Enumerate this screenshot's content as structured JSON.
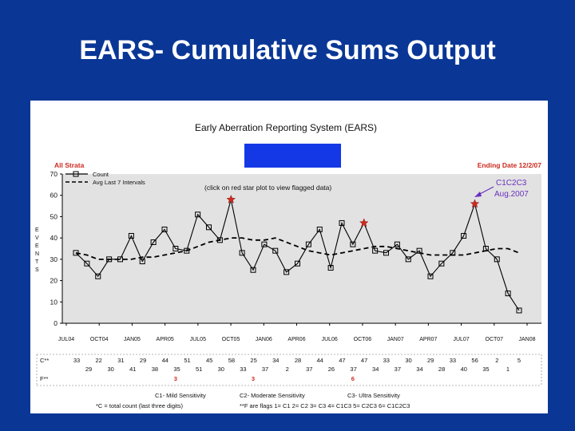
{
  "slide": {
    "title": "EARS- Cumulative Sums Output"
  },
  "report": {
    "system_title": "Early Aberration Reporting System (EARS)",
    "highlight_color": "#1438e6",
    "strata": "All Strata",
    "ending_date": "Ending Date 12/2/07",
    "legend_count": "Count",
    "legend_avg": "Avg Last 7 Intervals",
    "click_note": "(click on red star plot to view flagged data)",
    "y_axis_letters": [
      "E",
      "V",
      "E",
      "N",
      "T",
      "S"
    ],
    "annotation": {
      "line1": "C1C2C3",
      "line2": "Aug.2007",
      "color": "#6a2fbd"
    },
    "table": {
      "row_c_label": "C**",
      "row_f_label": "F**",
      "c_upper": [
        "33",
        "22",
        "31",
        "29",
        "44",
        "51",
        "45",
        "58",
        "25",
        "34",
        "28",
        "44",
        "47",
        "47",
        "33",
        "30",
        "29",
        "33",
        "56",
        "2",
        "5"
      ],
      "c_lower": [
        "29",
        "30",
        "41",
        "38",
        "35",
        "51",
        "30",
        "33",
        "37",
        "2",
        "37",
        "26",
        "37",
        "34",
        "37",
        "34",
        "28",
        "40",
        "35",
        "1"
      ],
      "flags": [
        {
          "index": 9,
          "value": "3"
        },
        {
          "index": 16,
          "value": "3"
        },
        {
          "index": 25,
          "value": "6"
        }
      ],
      "flag_color": "#cc2a1e"
    },
    "footer": {
      "sens_c1": "C1- Mild Sensitivity",
      "sens_c2": "C2- Moderate Sensitivity",
      "sens_c3": "C3- Ultra Sensitivity",
      "note_c": "*C = total count (last three digits)",
      "note_f": "**F are flags 1= C1 2= C2 3= C3 4= C1C3 5= C2C3 6= C1C2C3"
    }
  },
  "chart_data": {
    "type": "line",
    "title": "Early Aberration Reporting System (EARS)",
    "xlabel": "",
    "ylabel": "EVENTS",
    "ylim": [
      0,
      70
    ],
    "yticks": [
      0,
      10,
      20,
      30,
      40,
      50,
      60,
      70
    ],
    "grid": false,
    "legend_position": "top-left",
    "x_tick_labels": [
      "JUL04",
      "OCT04",
      "JAN05",
      "APR05",
      "JUL05",
      "OCT05",
      "JAN06",
      "APR06",
      "JUL06",
      "OCT06",
      "JAN07",
      "APR07",
      "JUL07",
      "OCT07",
      "JAN08"
    ],
    "series": [
      {
        "name": "Count",
        "style": "solid-square-markers",
        "color": "#000000",
        "values": [
          33,
          28,
          22,
          30,
          30,
          41,
          29,
          38,
          44,
          35,
          34,
          51,
          45,
          39,
          58,
          33,
          25,
          37,
          34,
          24,
          28,
          37,
          44,
          26,
          47,
          37,
          47,
          34,
          33,
          37,
          30,
          34,
          22,
          28,
          33,
          41,
          56,
          35,
          30,
          14,
          6
        ]
      },
      {
        "name": "Avg Last 7 Intervals",
        "style": "dashed",
        "color": "#000000",
        "values": [
          33,
          32,
          30,
          30,
          30,
          30,
          31,
          31,
          32,
          33,
          34,
          36,
          38,
          39,
          40,
          40,
          39,
          39,
          40,
          38,
          36,
          34,
          33,
          32,
          33,
          34,
          35,
          36,
          36,
          35,
          34,
          33,
          32,
          32,
          32,
          32,
          33,
          34,
          35,
          35,
          33
        ]
      }
    ],
    "flagged_points": [
      {
        "index": 14,
        "value": 58
      },
      {
        "index": 26,
        "value": 47
      },
      {
        "index": 36,
        "value": 56
      }
    ],
    "flag_marker_color": "#cc2a1e"
  }
}
